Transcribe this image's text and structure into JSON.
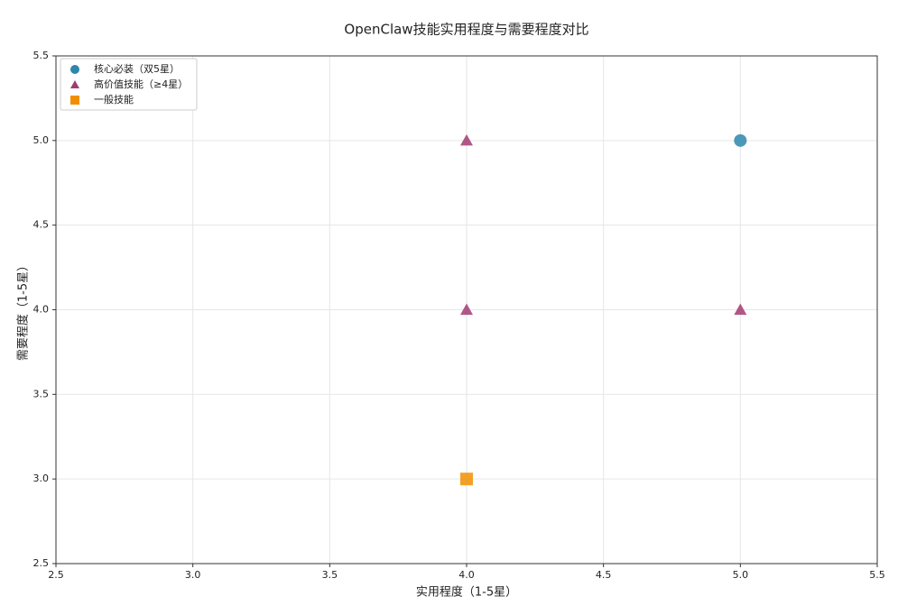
{
  "chart_data": {
    "type": "scatter",
    "title": "OpenClaw技能实用程度与需要程度对比",
    "x_label": "实用程度（1-5星）",
    "y_label": "需要程度（1-5星）",
    "xlim": [
      2.5,
      5.5
    ],
    "ylim": [
      2.5,
      5.5
    ],
    "xticks": [
      2.5,
      {
        "value": 3,
        "label": "3.0"
      },
      3.5,
      {
        "value": 4,
        "label": "4.0"
      },
      4.5,
      {
        "value": 5,
        "label": "5.0"
      },
      5.5
    ],
    "yticks": [
      2.5,
      {
        "value": 3,
        "label": "3.0"
      },
      3.5,
      {
        "value": 4,
        "label": "4.0"
      },
      4.5,
      {
        "value": 5,
        "label": "5.0"
      },
      5.5
    ],
    "grid": true,
    "legend": "upper left",
    "series": [
      {
        "name": "核心必装（双5星）",
        "color": "#2e86ab",
        "marker": "circle",
        "x": [
          5
        ],
        "values": [
          5
        ]
      },
      {
        "name": "高价值技能（≥4星）",
        "color": "#a23b72",
        "marker": "triangle",
        "x": [
          4,
          4,
          5
        ],
        "values": [
          5,
          4,
          4
        ]
      },
      {
        "name": "一般技能",
        "color": "#f18f01",
        "marker": "square",
        "x": [
          4
        ],
        "values": [
          3
        ]
      }
    ]
  }
}
